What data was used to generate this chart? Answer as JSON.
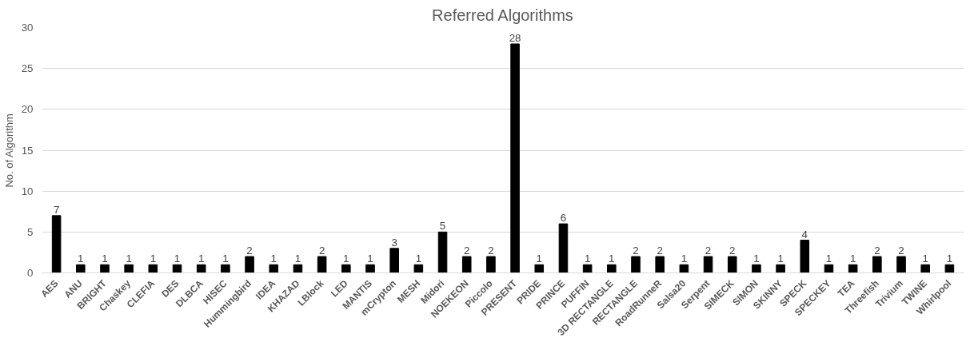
{
  "chart_data": {
    "type": "bar",
    "title": "Referred Algorithms",
    "ylabel": "No. of Algorithm",
    "categories": [
      "AES",
      "ANU",
      "BRIGHT",
      "Chaskey",
      "CLEFIA",
      "DES",
      "DLBCA",
      "HISEC",
      "Hummingbird",
      "IDEA",
      "KHAZAD",
      "LBlock",
      "LED",
      "MANTIS",
      "mCrypton",
      "MESH",
      "Midori",
      "NOEKEON",
      "Piccolo",
      "PRESENT",
      "PRIDE",
      "PRINCE",
      "PUFFIN",
      "3D RECTANGLE",
      "RECTANGLE",
      "RoadRunneR",
      "Salsa20",
      "Serpent",
      "SIMECK",
      "SIMON",
      "SKINNY",
      "SPECK",
      "SPECKEY",
      "TEA",
      "Threefish",
      "Trivium",
      "TWINE",
      "Whirlpool"
    ],
    "values": [
      7,
      1,
      1,
      1,
      1,
      1,
      1,
      1,
      2,
      1,
      1,
      2,
      1,
      1,
      3,
      1,
      5,
      2,
      2,
      28,
      1,
      6,
      1,
      1,
      2,
      2,
      1,
      2,
      2,
      1,
      1,
      4,
      1,
      1,
      2,
      2,
      1,
      1
    ],
    "color": "#000000",
    "ylim": [
      0,
      30
    ],
    "yticks": [
      0,
      5,
      10,
      15,
      20,
      25,
      30
    ],
    "grid": "y",
    "data_labels": true
  }
}
